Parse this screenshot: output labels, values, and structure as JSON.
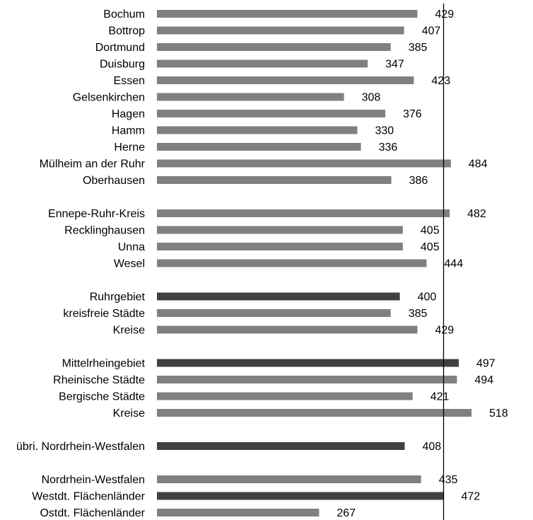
{
  "chart_data": {
    "type": "bar",
    "orientation": "horizontal",
    "categories": [
      "Bochum",
      "Bottrop",
      "Dortmund",
      "Duisburg",
      "Essen",
      "Gelsenkirchen",
      "Hagen",
      "Hamm",
      "Herne",
      "Mülheim an der Ruhr",
      "Oberhausen",
      "Ennepe-Ruhr-Kreis",
      "Recklinghausen",
      "Unna",
      "Wesel",
      "Ruhrgebiet",
      "kreisfreie Städte",
      "Kreise",
      "Mittelrheingebiet",
      "Rheinische Städte",
      "Bergische Städte",
      "Kreise",
      "übri. Nordrhein-Westfalen",
      "Nordrhein-Westfalen",
      "Westdt. Flächenländer",
      "Ostdt. Flächenländer"
    ],
    "values": [
      429,
      407,
      385,
      347,
      423,
      308,
      376,
      330,
      336,
      484,
      386,
      482,
      405,
      405,
      444,
      400,
      385,
      429,
      497,
      494,
      421,
      518,
      408,
      435,
      472,
      267
    ],
    "value_labels": [
      "429",
      "407",
      "385",
      "347",
      "423",
      "308",
      "376",
      "330",
      "336",
      "484",
      "386",
      "482",
      "405",
      "405",
      "444",
      "400",
      "385",
      "429",
      "497",
      "494",
      "421",
      "518",
      "408",
      "435",
      "472",
      "267"
    ],
    "highlighted": [
      false,
      false,
      false,
      false,
      false,
      false,
      false,
      false,
      false,
      false,
      false,
      false,
      false,
      false,
      false,
      true,
      false,
      false,
      true,
      false,
      false,
      false,
      true,
      false,
      true,
      false
    ],
    "group_breaks_after": [
      10,
      14,
      17,
      21,
      22
    ],
    "reference_value": 472,
    "xlim": [
      0,
      560
    ],
    "title": "",
    "xlabel": "",
    "ylabel": "",
    "legend": "none",
    "grid": false,
    "colors": {
      "bar": "#808080",
      "highlight": "#404040",
      "reference_line": "#000000",
      "text": "#000000"
    }
  }
}
